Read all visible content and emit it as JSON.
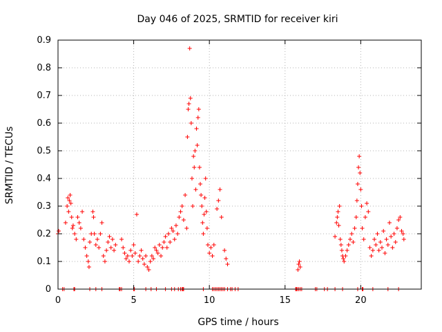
{
  "chart_data": {
    "type": "scatter",
    "title": "Day 046 of 2025, SRMTID for receiver kiri",
    "xlabel": "GPS time / hours",
    "ylabel": "SRMTID / TECUs",
    "xlim": [
      0,
      24
    ],
    "ylim": [
      0,
      0.9
    ],
    "xticks": [
      0,
      5,
      10,
      15,
      20
    ],
    "xtick_labels": [
      "0",
      "5",
      "10",
      "15",
      "20"
    ],
    "yticks": [
      0,
      0.1,
      0.2,
      0.3,
      0.4,
      0.5,
      0.6,
      0.7,
      0.8,
      0.9
    ],
    "ytick_labels": [
      "0",
      "0.1",
      "0.2",
      "0.3",
      "0.4",
      "0.5",
      "0.6",
      "0.7",
      "0.8",
      "0.9"
    ],
    "grid": true,
    "marker": "+",
    "series": [
      {
        "name": "SRMTID",
        "color": "#ff0000",
        "points": [
          [
            0.0,
            0.2
          ],
          [
            0.05,
            0.21
          ],
          [
            0.5,
            0.24
          ],
          [
            0.6,
            0.3
          ],
          [
            0.65,
            0.33
          ],
          [
            0.7,
            0.28
          ],
          [
            0.75,
            0.32
          ],
          [
            0.8,
            0.34
          ],
          [
            0.85,
            0.31
          ],
          [
            0.9,
            0.26
          ],
          [
            0.95,
            0.22
          ],
          [
            1.0,
            0.23
          ],
          [
            1.1,
            0.2
          ],
          [
            1.2,
            0.18
          ],
          [
            1.3,
            0.26
          ],
          [
            1.4,
            0.24
          ],
          [
            1.5,
            0.22
          ],
          [
            1.6,
            0.28
          ],
          [
            1.7,
            0.18
          ],
          [
            1.8,
            0.15
          ],
          [
            1.9,
            0.12
          ],
          [
            2.0,
            0.1
          ],
          [
            2.05,
            0.08
          ],
          [
            2.1,
            0.17
          ],
          [
            2.2,
            0.2
          ],
          [
            2.3,
            0.28
          ],
          [
            2.35,
            0.26
          ],
          [
            2.4,
            0.2
          ],
          [
            2.5,
            0.16
          ],
          [
            2.6,
            0.18
          ],
          [
            2.7,
            0.15
          ],
          [
            2.8,
            0.2
          ],
          [
            2.9,
            0.24
          ],
          [
            3.0,
            0.12
          ],
          [
            3.1,
            0.1
          ],
          [
            3.2,
            0.14
          ],
          [
            3.3,
            0.17
          ],
          [
            3.4,
            0.19
          ],
          [
            3.5,
            0.15
          ],
          [
            3.6,
            0.18
          ],
          [
            3.7,
            0.14
          ],
          [
            3.8,
            0.16
          ],
          [
            4.2,
            0.18
          ],
          [
            4.3,
            0.15
          ],
          [
            4.4,
            0.13
          ],
          [
            4.5,
            0.11
          ],
          [
            4.6,
            0.12
          ],
          [
            4.7,
            0.1
          ],
          [
            4.8,
            0.14
          ],
          [
            4.9,
            0.12
          ],
          [
            5.0,
            0.16
          ],
          [
            5.1,
            0.13
          ],
          [
            5.2,
            0.27
          ],
          [
            5.3,
            0.1
          ],
          [
            5.4,
            0.12
          ],
          [
            5.5,
            0.14
          ],
          [
            5.6,
            0.11
          ],
          [
            5.7,
            0.09
          ],
          [
            5.8,
            0.12
          ],
          [
            5.9,
            0.08
          ],
          [
            6.0,
            0.07
          ],
          [
            6.1,
            0.1
          ],
          [
            6.2,
            0.12
          ],
          [
            6.3,
            0.11
          ],
          [
            6.4,
            0.15
          ],
          [
            6.5,
            0.14
          ],
          [
            6.6,
            0.13
          ],
          [
            6.7,
            0.16
          ],
          [
            6.8,
            0.12
          ],
          [
            6.9,
            0.15
          ],
          [
            7.0,
            0.17
          ],
          [
            7.1,
            0.19
          ],
          [
            7.2,
            0.15
          ],
          [
            7.3,
            0.2
          ],
          [
            7.4,
            0.17
          ],
          [
            7.5,
            0.22
          ],
          [
            7.6,
            0.21
          ],
          [
            7.7,
            0.18
          ],
          [
            7.8,
            0.23
          ],
          [
            7.9,
            0.2
          ],
          [
            8.0,
            0.26
          ],
          [
            8.1,
            0.28
          ],
          [
            8.2,
            0.3
          ],
          [
            8.3,
            0.25
          ],
          [
            8.4,
            0.34
          ],
          [
            8.5,
            0.22
          ],
          [
            8.55,
            0.55
          ],
          [
            8.6,
            0.65
          ],
          [
            8.65,
            0.67
          ],
          [
            8.7,
            0.87
          ],
          [
            8.75,
            0.69
          ],
          [
            8.8,
            0.6
          ],
          [
            8.85,
            0.4
          ],
          [
            8.9,
            0.3
          ],
          [
            8.95,
            0.48
          ],
          [
            9.0,
            0.44
          ],
          [
            9.05,
            0.5
          ],
          [
            9.1,
            0.36
          ],
          [
            9.15,
            0.58
          ],
          [
            9.2,
            0.52
          ],
          [
            9.25,
            0.62
          ],
          [
            9.3,
            0.65
          ],
          [
            9.35,
            0.44
          ],
          [
            9.4,
            0.38
          ],
          [
            9.45,
            0.34
          ],
          [
            9.5,
            0.3
          ],
          [
            9.55,
            0.24
          ],
          [
            9.6,
            0.2
          ],
          [
            9.65,
            0.27
          ],
          [
            9.7,
            0.33
          ],
          [
            9.75,
            0.4
          ],
          [
            9.8,
            0.28
          ],
          [
            9.85,
            0.22
          ],
          [
            9.9,
            0.16
          ],
          [
            10.0,
            0.13
          ],
          [
            10.1,
            0.15
          ],
          [
            10.2,
            0.12
          ],
          [
            10.3,
            0.16
          ],
          [
            10.5,
            0.29
          ],
          [
            10.6,
            0.32
          ],
          [
            10.7,
            0.36
          ],
          [
            10.8,
            0.26
          ],
          [
            11.0,
            0.14
          ],
          [
            11.1,
            0.11
          ],
          [
            11.2,
            0.09
          ],
          [
            15.85,
            0.07
          ],
          [
            15.9,
            0.09
          ],
          [
            15.95,
            0.1
          ],
          [
            16.0,
            0.08
          ],
          [
            18.3,
            0.19
          ],
          [
            18.4,
            0.24
          ],
          [
            18.45,
            0.26
          ],
          [
            18.5,
            0.28
          ],
          [
            18.55,
            0.23
          ],
          [
            18.6,
            0.3
          ],
          [
            18.65,
            0.18
          ],
          [
            18.7,
            0.16
          ],
          [
            18.75,
            0.14
          ],
          [
            18.8,
            0.12
          ],
          [
            18.85,
            0.11
          ],
          [
            18.9,
            0.1
          ],
          [
            19.0,
            0.12
          ],
          [
            19.1,
            0.14
          ],
          [
            19.2,
            0.16
          ],
          [
            19.3,
            0.18
          ],
          [
            19.4,
            0.2
          ],
          [
            19.5,
            0.17
          ],
          [
            19.6,
            0.22
          ],
          [
            19.7,
            0.26
          ],
          [
            19.75,
            0.32
          ],
          [
            19.8,
            0.38
          ],
          [
            19.85,
            0.44
          ],
          [
            19.9,
            0.48
          ],
          [
            19.95,
            0.42
          ],
          [
            20.0,
            0.36
          ],
          [
            20.05,
            0.3
          ],
          [
            20.1,
            0.22
          ],
          [
            20.2,
            0.18
          ],
          [
            20.3,
            0.26
          ],
          [
            20.4,
            0.31
          ],
          [
            20.5,
            0.28
          ],
          [
            20.6,
            0.15
          ],
          [
            20.7,
            0.12
          ],
          [
            20.8,
            0.14
          ],
          [
            20.9,
            0.18
          ],
          [
            21.0,
            0.16
          ],
          [
            21.1,
            0.2
          ],
          [
            21.2,
            0.14
          ],
          [
            21.3,
            0.17
          ],
          [
            21.4,
            0.15
          ],
          [
            21.5,
            0.21
          ],
          [
            21.6,
            0.13
          ],
          [
            21.7,
            0.18
          ],
          [
            21.8,
            0.16
          ],
          [
            21.9,
            0.24
          ],
          [
            22.0,
            0.19
          ],
          [
            22.1,
            0.15
          ],
          [
            22.2,
            0.2
          ],
          [
            22.3,
            0.17
          ],
          [
            22.4,
            0.22
          ],
          [
            22.5,
            0.25
          ],
          [
            22.6,
            0.26
          ],
          [
            22.7,
            0.21
          ],
          [
            22.8,
            0.2
          ],
          [
            22.85,
            0.18
          ],
          [
            0.3,
            0.0
          ],
          [
            0.4,
            0.0
          ],
          [
            1.05,
            0.0
          ],
          [
            1.1,
            0.0
          ],
          [
            2.1,
            0.0
          ],
          [
            2.5,
            0.0
          ],
          [
            2.9,
            0.0
          ],
          [
            4.05,
            0.0
          ],
          [
            4.1,
            0.0
          ],
          [
            4.2,
            0.0
          ],
          [
            5.0,
            0.0
          ],
          [
            5.05,
            0.0
          ],
          [
            5.8,
            0.0
          ],
          [
            6.15,
            0.0
          ],
          [
            6.5,
            0.0
          ],
          [
            7.1,
            0.0
          ],
          [
            7.5,
            0.0
          ],
          [
            7.7,
            0.0
          ],
          [
            7.95,
            0.0
          ],
          [
            8.1,
            0.0
          ],
          [
            8.2,
            0.0
          ],
          [
            8.25,
            0.0
          ],
          [
            8.3,
            0.0
          ],
          [
            9.6,
            0.0
          ],
          [
            10.2,
            0.0
          ],
          [
            10.3,
            0.0
          ],
          [
            10.4,
            0.0
          ],
          [
            10.5,
            0.0
          ],
          [
            10.6,
            0.0
          ],
          [
            10.7,
            0.0
          ],
          [
            10.8,
            0.0
          ],
          [
            10.9,
            0.0
          ],
          [
            11.0,
            0.0
          ],
          [
            11.2,
            0.0
          ],
          [
            11.4,
            0.0
          ],
          [
            11.5,
            0.0
          ],
          [
            11.7,
            0.0
          ],
          [
            11.9,
            0.0
          ],
          [
            15.7,
            0.0
          ],
          [
            15.75,
            0.0
          ],
          [
            15.8,
            0.0
          ],
          [
            15.9,
            0.0
          ],
          [
            16.0,
            0.0
          ],
          [
            16.1,
            0.0
          ],
          [
            17.0,
            0.0
          ],
          [
            17.1,
            0.0
          ],
          [
            17.6,
            0.0
          ],
          [
            17.8,
            0.0
          ],
          [
            18.3,
            0.0
          ],
          [
            18.8,
            0.0
          ],
          [
            19.8,
            0.0
          ],
          [
            20.1,
            0.0
          ],
          [
            20.15,
            0.0
          ],
          [
            20.8,
            0.0
          ],
          [
            21.8,
            0.0
          ],
          [
            22.5,
            0.0
          ]
        ]
      }
    ]
  }
}
